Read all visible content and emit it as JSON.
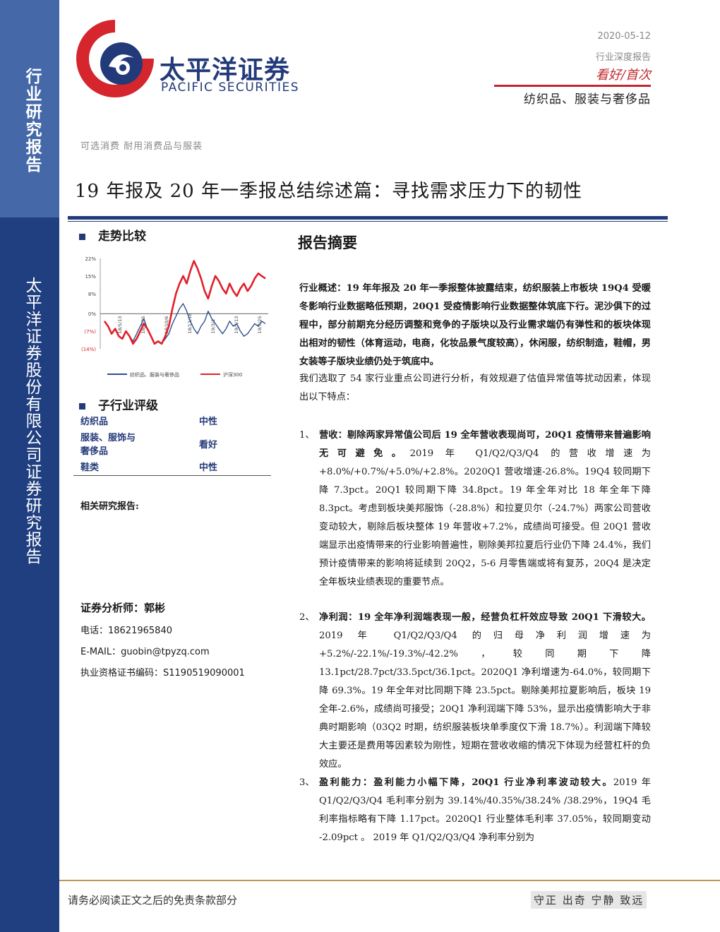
{
  "sidebar": {
    "label": "行业研究报告",
    "company": "太平洋证券股份有限公司证券研究报告"
  },
  "logo": {
    "cn": "太平洋证券",
    "en": "PACIFIC SECURITIES",
    "colors": {
      "red": "#d4262c",
      "blue": "#233a7a"
    }
  },
  "header": {
    "date": "2020-05-12",
    "report_type": "行业深度报告",
    "rating": "看好/首次",
    "industry": "纺织品、服装与奢侈品"
  },
  "category": "可选消费 耐用消费品与服装",
  "title": "19 年报及 20 年一季报总结综述篇：寻找需求压力下的韧性",
  "trend": {
    "heading": "走势比较",
    "chart_data": {
      "type": "line",
      "ylim": [
        -14,
        22
      ],
      "y_ticks": [
        "22%",
        "15%",
        "8%",
        "0%",
        "(7%)",
        "(14%)"
      ],
      "x_ticks": [
        "19/5/13",
        "19/7/25",
        "19/10/6",
        "19/12/18",
        "20/2/29",
        "20/5/12"
      ],
      "x_tick_visible": [
        "18/5/13",
        "18/7/25",
        "18/10/6",
        "18/12/18",
        "19/3/1",
        "19/5/13",
        "19/7/25"
      ],
      "series": [
        {
          "name": "纺织品、服装与奢侈品",
          "color": "#2f4f8f",
          "values": [
            -3,
            -5,
            -8,
            -6,
            -9,
            -10,
            -7,
            -9,
            -11,
            -8,
            -5,
            -2,
            -6,
            -9,
            -12,
            -11,
            -12,
            -10,
            -8,
            -4,
            -1,
            2,
            4,
            1,
            -3,
            -6,
            -8,
            -5,
            -3,
            1,
            -2,
            -4,
            -6,
            -8,
            -6,
            -3,
            -5,
            -4,
            -7,
            -9,
            -8,
            -6,
            -4,
            -5,
            -3,
            -4
          ]
        },
        {
          "name": "沪深300",
          "color": "#e0202a",
          "values": [
            -3,
            -5,
            -8,
            -6,
            -9,
            -10,
            -7,
            -9,
            -12,
            -10,
            -7,
            -4,
            -6,
            -9,
            -12,
            -11,
            -12,
            -9,
            -5,
            2,
            8,
            12,
            15,
            12,
            17,
            21,
            18,
            14,
            9,
            6,
            11,
            15,
            13,
            10,
            8,
            12,
            9,
            7,
            10,
            12,
            9,
            11,
            14,
            16,
            15,
            14
          ]
        }
      ],
      "legend": "bottom"
    }
  },
  "sub_industry": {
    "heading": "子行业评级",
    "rows": [
      {
        "name": "纺织品",
        "rating": "中性"
      },
      {
        "name": "服装、服饰与\n奢侈品",
        "rating": "看好"
      },
      {
        "name": "鞋类",
        "rating": "中性"
      }
    ]
  },
  "related_label": "相关研究报告:",
  "analyst": {
    "label": "证券分析师：郭彬",
    "phone": "电话：18621965840",
    "email": "E-MAIL：guobin@tpyzq.com",
    "cert": "执业资格证书编码：S1190519090001"
  },
  "summary": {
    "heading": "报告摘要",
    "overview_bold": "行业概述：19 年年报及 20 年一季报整体披露结束，纺织服装上市板块 19Q4 受暖冬影响行业数据略低预期，20Q1 受疫情影响行业数据整体筑底下行。泥沙俱下的过程中，部分前期充分经历调整和竞争的子版块以及行业需求端仍有弹性和的板块体现出相对的韧性（体育运动，电商，化妆品景气度较高），休闲服，纺织制造，鞋帽，男女装等子版块业绩仍处于筑底中。",
    "intro": "我们选取了 54 家行业重点公司进行分析，有效规避了估值异常值等扰动因素，体现出以下特点：",
    "items": [
      {
        "num": "1、",
        "bold": "营收：剔除两家异常值公司后 19 全年营收表现尚可，20Q1 疫情带来普遍影响无可避免。",
        "text": "2019 年 Q1/Q2/Q3/Q4 的营收增速为 +8.0%/+0.7%/+5.0%/+2.8%。2020Q1 营收增速-26.8%。19Q4 较同期下降 7.3pct。20Q1 较同期下降 34.8pct。19 年全年对比 18 年全年下降 8.3pct。考虑到板块美邦服饰（-28.8%）和拉夏贝尔（-24.7%）两家公司营收变动较大，剔除后板块整体 19 年营收+7.2%，成绩尚可接受。但 20Q1 营收端显示出疫情带来的行业影响普遍性，剔除美邦拉夏后行业仍下降 24.4%，我们预计疫情带来的影响将延续到 20Q2，5-6 月零售端或将有复苏，20Q4 是决定全年板块业绩表现的重要节点。"
      },
      {
        "num": "2、",
        "bold": "净利润：19 全年净利润端表现一般，经营负杠杆效应导致 20Q1 下滑较大。",
        "text": "2019 年 Q1/Q2/Q3/Q4 的归母净利润增速为 +5.2%/-22.1%/-19.3%/-42.2%，较同期下降 13.1pct/28.7pct/33.5pct/36.1pct。2020Q1 净利增速为-64.0%，较同期下降 69.3%。19 年全年对比同期下降 23.5pct。剔除美邦拉夏影响后，板块 19 全年-2.6%，成绩尚可接受；20Q1 净利润端下降 53%，显示出疫情影响大于非典时期影响（03Q2 时期，纺织服装板块单季度仅下滑 18.7%）。利润端下降较大主要还是费用等因素较为刚性，短期在营收收缩的情况下体现为经营杠杆的负效应。"
      },
      {
        "num": "3、",
        "bold": "盈利能力：盈利能力小幅下降，20Q1 行业净利率波动较大。",
        "text": "2019 年 Q1/Q2/Q3/Q4 毛利率分别为 39.14%/40.35%/38.24% /38.29%，19Q4 毛利率指标略有下降 1.17pct。2020Q1 行业整体毛利率 37.05%，较同期变动 -2.09pct 。 2019 年 Q1/Q2/Q3/Q4 净利率分别为"
      }
    ]
  },
  "footer": {
    "left": "请务必阅读正文之后的免责条款部分",
    "right": "守正 出奇 宁静 致远"
  }
}
